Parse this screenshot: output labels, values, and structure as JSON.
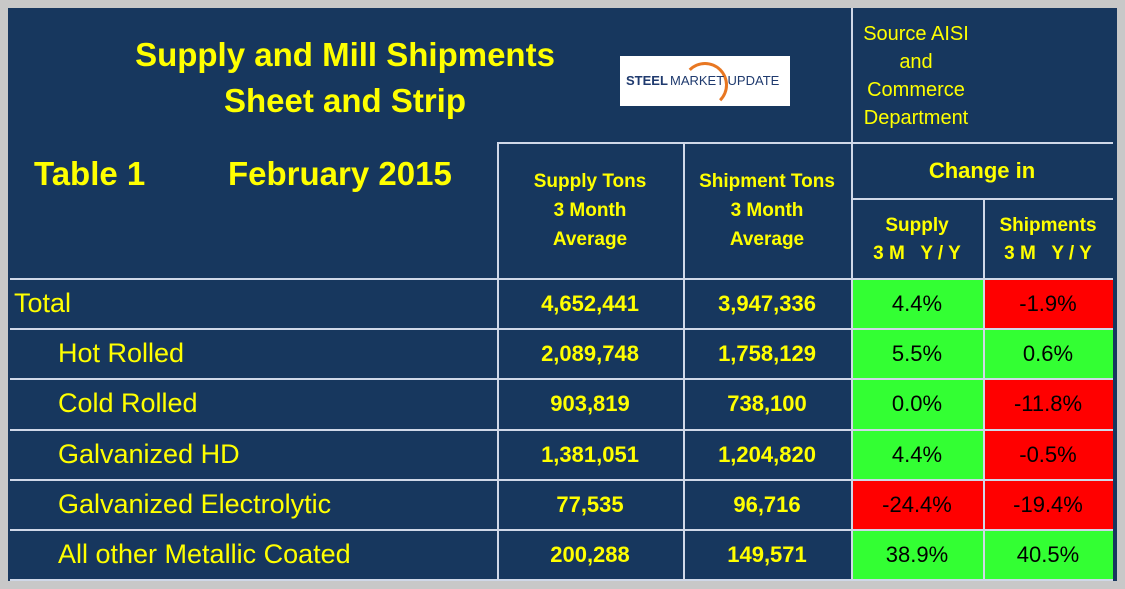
{
  "header": {
    "title": [
      "Supply and Mill Shipments",
      "Sheet and Strip"
    ],
    "logo": [
      "STEEL",
      "MARKET UPDATE"
    ],
    "source": [
      "Source AISI",
      "and",
      "Commerce",
      "Department"
    ],
    "table_label": "Table 1",
    "period": "February 2015"
  },
  "table": {
    "columns": [
      [
        "Supply Tons",
        "3 Month",
        "Average"
      ],
      [
        "Shipment Tons",
        "3 Month",
        "Average"
      ]
    ],
    "change_header": "Change in",
    "change_columns": [
      [
        "Supply",
        "3 M   Y / Y"
      ],
      [
        "Shipments",
        "3 M   Y / Y"
      ]
    ],
    "rows": [
      [
        "Total",
        "4,652,441",
        "3,947,336",
        "4.4%",
        "-1.9%"
      ],
      [
        "Hot Rolled",
        "2,089,748",
        "1,758,129",
        "5.5%",
        "0.6%"
      ],
      [
        "Cold Rolled",
        "903,819",
        "738,100",
        "0.0%",
        "-11.8%"
      ],
      [
        "Galvanized HD",
        "1,381,051",
        "1,204,820",
        "4.4%",
        "-0.5%"
      ],
      [
        "Galvanized Electrolytic",
        "77,535",
        "96,716",
        "-24.4%",
        "-19.4%"
      ],
      [
        "All other Metallic Coated",
        "200,288",
        "149,571",
        "38.9%",
        "40.5%"
      ]
    ],
    "change_colors": [
      [
        "#33ff33",
        "#ff0000"
      ],
      [
        "#33ff33",
        "#33ff33"
      ],
      [
        "#33ff33",
        "#ff0000"
      ],
      [
        "#33ff33",
        "#ff0000"
      ],
      [
        "#ff0000",
        "#ff0000"
      ],
      [
        "#33ff33",
        "#33ff33"
      ]
    ]
  }
}
